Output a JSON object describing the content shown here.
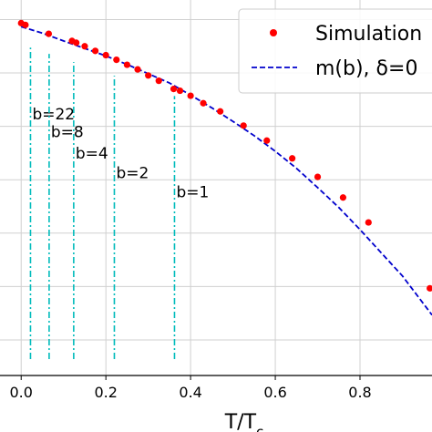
{
  "chart_data": {
    "type": "scatter",
    "xlabel": "T/T",
    "xlabel_sub": "c",
    "ylabel": "",
    "xlim": [
      -0.05,
      0.97
    ],
    "ylim": [
      0.0,
      1.055
    ],
    "x_ticks": [
      0.0,
      0.2,
      0.4,
      0.6,
      0.8
    ],
    "x_tick_labels": [
      "0.0",
      "0.2",
      "0.4",
      "0.6",
      "0.8"
    ],
    "y_gridlines": [
      0.1,
      0.25,
      0.4,
      0.55,
      0.7,
      0.85,
      1.0
    ],
    "grid": true,
    "legend": {
      "placement": "top-right",
      "entries": [
        {
          "label": "Simulation",
          "marker": "dot",
          "color": "#ff0000"
        },
        {
          "label": "m(b), δ=0",
          "marker": "dashed-line",
          "color": "#0000cc"
        }
      ]
    },
    "series": [
      {
        "name": "Simulation",
        "style": "markers",
        "color": "#ff0000",
        "x": [
          0.0,
          0.01,
          0.065,
          0.12,
          0.13,
          0.15,
          0.175,
          0.2,
          0.225,
          0.25,
          0.275,
          0.3,
          0.325,
          0.36,
          0.375,
          0.4,
          0.43,
          0.47,
          0.525,
          0.58,
          0.64,
          0.7,
          0.76,
          0.82,
          0.965
        ],
        "y": [
          0.99,
          0.985,
          0.96,
          0.94,
          0.935,
          0.925,
          0.912,
          0.9,
          0.887,
          0.873,
          0.86,
          0.843,
          0.828,
          0.805,
          0.8,
          0.786,
          0.765,
          0.742,
          0.702,
          0.66,
          0.61,
          0.558,
          0.5,
          0.43,
          0.245
        ]
      },
      {
        "name": "m(b), δ=0",
        "style": "dashed",
        "color": "#0000cc",
        "x": [
          0.0,
          0.05,
          0.1,
          0.15,
          0.2,
          0.25,
          0.3,
          0.35,
          0.4,
          0.45,
          0.5,
          0.55,
          0.6,
          0.65,
          0.7,
          0.75,
          0.8,
          0.85,
          0.9,
          0.97
        ],
        "y": [
          0.98,
          0.962,
          0.94,
          0.919,
          0.898,
          0.874,
          0.848,
          0.822,
          0.788,
          0.752,
          0.714,
          0.674,
          0.63,
          0.582,
          0.528,
          0.472,
          0.41,
          0.345,
          0.28,
          0.17
        ]
      }
    ],
    "vlines": [
      {
        "x": 0.022,
        "label": "b=22",
        "label_y": 0.72,
        "color": "#00bbbb"
      },
      {
        "x": 0.066,
        "label": "b=8",
        "label_y": 0.67,
        "color": "#00bbbb"
      },
      {
        "x": 0.124,
        "label": "b=4",
        "label_y": 0.61,
        "color": "#00bbbb"
      },
      {
        "x": 0.22,
        "label": "b=2",
        "label_y": 0.555,
        "color": "#00bbbb"
      },
      {
        "x": 0.362,
        "label": "b=1",
        "label_y": 0.5,
        "color": "#00bbbb"
      }
    ]
  }
}
